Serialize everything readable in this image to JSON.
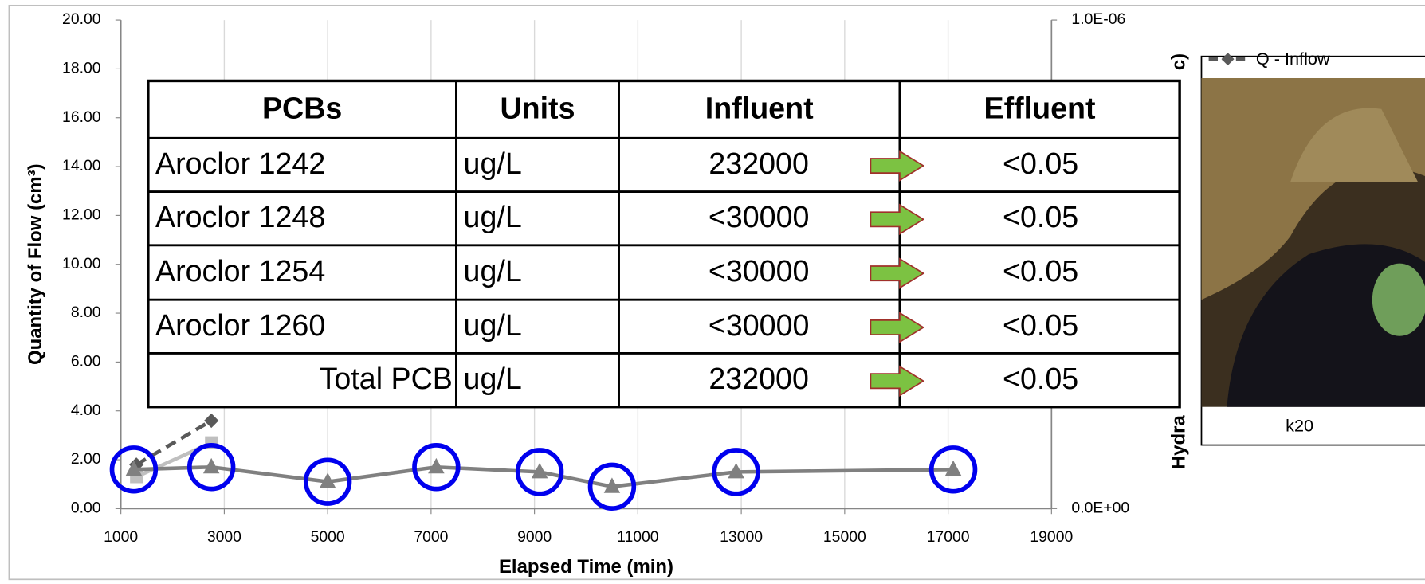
{
  "chart_data": {
    "type": "line",
    "panel_label": "c)",
    "x_label": "Elapsed Time (min)",
    "y_label": "Quantity of Flow (cm³)",
    "y2_label": "Hydra",
    "xlim": [
      1000,
      19000
    ],
    "xticks": [
      1000,
      3000,
      5000,
      7000,
      9000,
      11000,
      13000,
      15000,
      17000,
      19000
    ],
    "ylim": [
      0,
      20
    ],
    "yticks": [
      {
        "value": 0,
        "label": "0.00"
      },
      {
        "value": 2,
        "label": "2.00"
      },
      {
        "value": 4,
        "label": "4.00"
      },
      {
        "value": 6,
        "label": "6.00"
      },
      {
        "value": 8,
        "label": "8.00"
      },
      {
        "value": 10,
        "label": "10.00"
      },
      {
        "value": 12,
        "label": "12.00"
      },
      {
        "value": 14,
        "label": "14.00"
      },
      {
        "value": 16,
        "label": "16.00"
      },
      {
        "value": 18,
        "label": "18.00"
      },
      {
        "value": 20,
        "label": "20.00"
      }
    ],
    "y2lim": [
      0,
      1e-06
    ],
    "y2ticks": [
      {
        "value": 0,
        "label": "0.0E+00"
      },
      {
        "value": 1e-06,
        "label": "1.0E-06"
      }
    ],
    "grid": "x",
    "series": [
      {
        "name": "Q - Inflow",
        "color": "#595959",
        "dashed": true,
        "marker": "diamond",
        "x": [
          1300,
          2750
        ],
        "values": [
          1.8,
          3.6
        ]
      },
      {
        "color": "#bfbfbf",
        "marker": "square",
        "x": [
          1300,
          2750
        ],
        "values": [
          1.3,
          2.7
        ]
      },
      {
        "color": "#808080",
        "marker": "triangle",
        "highlight_color": "#0000ee",
        "x": [
          1250,
          2750,
          5000,
          7100,
          9100,
          10500,
          12900,
          17100
        ],
        "values": [
          1.6,
          1.7,
          1.1,
          1.7,
          1.5,
          0.9,
          1.5,
          1.6
        ]
      }
    ]
  },
  "table": {
    "header": [
      "PCBs",
      "Units",
      "Influent",
      "Effluent"
    ],
    "rows": [
      [
        "Aroclor 1242",
        "ug/L",
        "232000",
        "<0.05"
      ],
      [
        "Aroclor 1248",
        "ug/L",
        "<30000",
        "<0.05"
      ],
      [
        "Aroclor 1254",
        "ug/L",
        "<30000",
        "<0.05"
      ],
      [
        "Aroclor 1260",
        "ug/L",
        "<30000",
        "<0.05"
      ],
      [
        "Total PCB",
        "ug/L",
        "232000",
        "<0.05"
      ]
    ]
  },
  "picture": {
    "caption": "k20"
  }
}
